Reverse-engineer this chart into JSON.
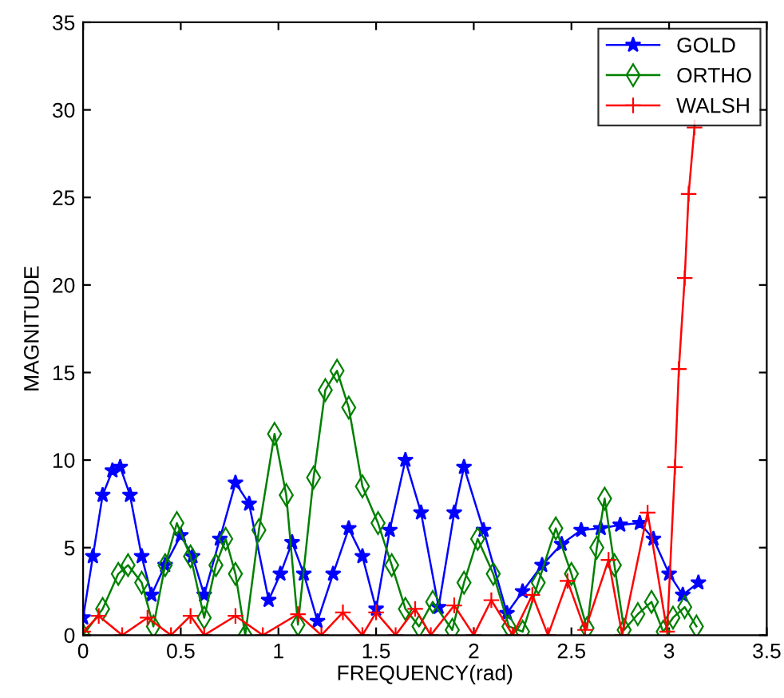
{
  "chart_data": {
    "type": "line",
    "xlabel": "FREQUENCY(rad)",
    "ylabel": "MAGNITUDE",
    "xlim": [
      0,
      3.5
    ],
    "xticks": [
      0,
      0.5,
      1,
      1.5,
      2,
      2.5,
      3,
      3.5
    ],
    "ylim": [
      0,
      35
    ],
    "yticks": [
      0,
      5,
      10,
      15,
      20,
      25,
      30,
      35
    ],
    "grid": false,
    "legend": "top right",
    "series": [
      {
        "name": "GOLD",
        "color": "#0000ff",
        "marker": "star",
        "x": [
          0,
          0.05,
          0.1,
          0.15,
          0.19,
          0.24,
          0.3,
          0.35,
          0.42,
          0.5,
          0.56,
          0.62,
          0.7,
          0.78,
          0.85,
          0.95,
          1.01,
          1.07,
          1.13,
          1.2,
          1.28,
          1.36,
          1.43,
          1.5,
          1.57,
          1.65,
          1.73,
          1.82,
          1.9,
          1.95,
          2.05,
          2.17,
          2.25,
          2.35,
          2.45,
          2.55,
          2.65,
          2.75,
          2.85,
          2.92,
          3.0,
          3.07,
          3.15
        ],
        "values": [
          1,
          4.5,
          8,
          9.4,
          9.6,
          8,
          4.5,
          2.3,
          4,
          5.7,
          4.5,
          2.3,
          5.5,
          8.7,
          7.5,
          2.0,
          3.5,
          5.3,
          3.5,
          0.8,
          3.5,
          6.1,
          4.5,
          1.5,
          6,
          10,
          7,
          1.6,
          7,
          9.6,
          6,
          1.25,
          2.5,
          4,
          5.2,
          6.0,
          6.1,
          6.3,
          6.4,
          5.5,
          3.5,
          2.3,
          3.0
        ]
      },
      {
        "name": "ORTHO",
        "color": "#008000",
        "marker": "diamond",
        "x": [
          0,
          0.1,
          0.18,
          0.23,
          0.3,
          0.36,
          0.42,
          0.48,
          0.55,
          0.62,
          0.68,
          0.73,
          0.78,
          0.83,
          0.9,
          0.98,
          1.04,
          1.1,
          1.18,
          1.24,
          1.3,
          1.36,
          1.43,
          1.51,
          1.58,
          1.65,
          1.72,
          1.79,
          1.89,
          1.95,
          2.02,
          2.1,
          2.18,
          2.25,
          2.33,
          2.42,
          2.5,
          2.58,
          2.63,
          2.67,
          2.72,
          2.77,
          2.84,
          2.91,
          2.97,
          3.02,
          3.08,
          3.14
        ],
        "values": [
          0,
          1.5,
          3.5,
          4.0,
          3,
          0.5,
          4,
          6.4,
          4.5,
          1,
          4,
          5.5,
          3.5,
          0,
          6,
          11.5,
          8,
          0.6,
          9,
          14,
          15.1,
          13,
          8.5,
          6.4,
          4,
          1.5,
          0.5,
          1.9,
          0.3,
          3,
          5.5,
          3.5,
          0.5,
          0.2,
          3,
          6.1,
          3.5,
          0.4,
          5,
          7.8,
          4,
          0.3,
          1.2,
          1.9,
          0.2,
          1.0,
          1.6,
          0.5
        ]
      },
      {
        "name": "WALSH",
        "color": "#ff0000",
        "marker": "cross",
        "x": [
          0,
          0.08,
          0.2,
          0.33,
          0.45,
          0.55,
          0.62,
          0.78,
          0.92,
          1.1,
          1.22,
          1.33,
          1.43,
          1.5,
          1.6,
          1.7,
          1.78,
          1.9,
          2.0,
          2.09,
          2.2,
          2.3,
          2.38,
          2.48,
          2.57,
          2.69,
          2.76,
          2.89,
          2.99,
          3.03,
          3.05,
          3.08,
          3.1,
          3.13
        ],
        "values": [
          0.2,
          1.1,
          0,
          1.0,
          0,
          1.1,
          0,
          1.1,
          0,
          1.2,
          0,
          1.3,
          0,
          1.3,
          0,
          1.5,
          0,
          1.7,
          0,
          2.0,
          0,
          2.3,
          0,
          3.1,
          0.3,
          4.3,
          0,
          7.0,
          0.2,
          9.6,
          15.2,
          20.4,
          25.2,
          29.0
        ]
      }
    ]
  }
}
